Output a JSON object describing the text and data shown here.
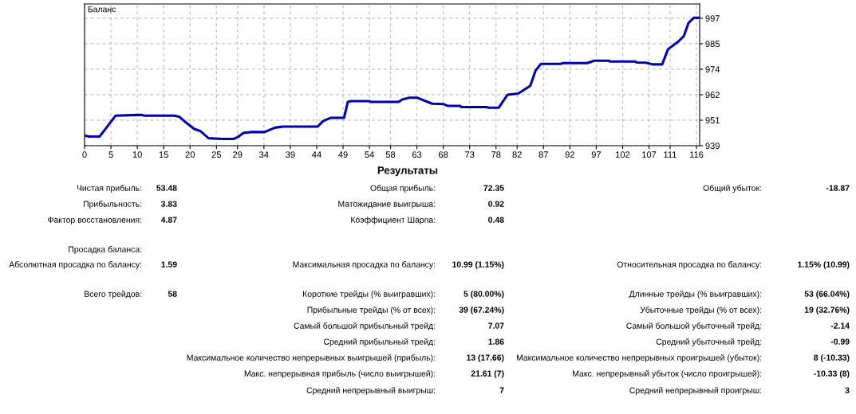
{
  "chart_data": [
    {
      "type": "line",
      "title": "Баланс",
      "x": [
        0,
        0.86,
        2.87,
        5.9,
        8.9,
        10.9,
        11.2,
        17.0,
        18.0,
        19.3,
        20.8,
        22.0,
        23.5,
        26.1,
        28.3,
        29.1,
        30.1,
        31.6,
        34.1,
        36.1,
        37.6,
        44.2,
        45.2,
        46.7,
        49.2,
        49.9,
        50.5,
        54.0,
        54.3,
        59.5,
        60.3,
        61.6,
        63.1,
        65.9,
        68.1,
        68.9,
        71.2,
        71.4,
        76.2,
        76.5,
        78.5,
        80.2,
        82.2,
        84.5,
        85.5,
        86.5,
        90.3,
        90.6,
        95.3,
        96.6,
        99.4,
        99.6,
        104.4,
        104.7,
        106.4,
        107.7,
        109.5,
        110.6,
        112.5,
        113.6,
        114.5,
        115.5,
        116.5
      ],
      "series": [
        {
          "color": "#0000aa",
          "values": [
            943.6,
            943.2,
            943.2,
            952.7,
            952.9,
            953.0,
            952.7,
            952.7,
            952.1,
            949.4,
            946.6,
            945.6,
            942.4,
            942.1,
            942.1,
            943.0,
            944.8,
            945.2,
            945.2,
            947.2,
            947.7,
            947.7,
            950.2,
            951.7,
            951.7,
            958.9,
            959.3,
            959.3,
            958.9,
            958.9,
            960.1,
            960.8,
            960.8,
            958.1,
            957.9,
            957.1,
            957.1,
            956.6,
            956.6,
            956.3,
            956.3,
            962.2,
            962.7,
            966.3,
            973.2,
            976.2,
            976.2,
            976.6,
            976.6,
            977.7,
            977.7,
            977.3,
            977.3,
            976.9,
            976.8,
            976.0,
            976.0,
            982.9,
            986.3,
            988.9,
            994.9,
            997.2,
            997.2
          ]
        }
      ],
      "xlim": [
        0,
        116.6
      ],
      "xticks": [
        0,
        5,
        10,
        15,
        20,
        25,
        29,
        34,
        39,
        44,
        49,
        54,
        58,
        63,
        68,
        73,
        78,
        82,
        87,
        92,
        97,
        102,
        107,
        111,
        116
      ],
      "ylim": [
        939,
        1003.5
      ],
      "yticks": [
        939,
        {
          "value": 950.6,
          "label": "951"
        },
        {
          "value": 962.2,
          "label": "962"
        },
        {
          "value": 973.8,
          "label": "974"
        },
        {
          "value": 985.4,
          "label": "985"
        },
        997
      ],
      "grid": true,
      "line_style": "solid",
      "marker": "none"
    },
    {
      "type": "other",
      "title": "Результаты",
      "annotations": [
        "Чистая прибыль:",
        "53.48",
        "Общая прибыль:",
        "72.35",
        "Общий убыток:",
        "-18.87",
        "Прибыльность:",
        "3.83",
        "Матожидание выигрыша:",
        "0.92",
        "Фактор восстановления:",
        "4.87",
        "Коэффициент Шарпа:",
        "0.48",
        "Просадка баланса:",
        "Абсолютная просадка по балансу:",
        "1.59",
        "Максимальная просадка по балансу:",
        "10.99 (1.15%)",
        "Относительная просадка по балансу:",
        "1.15% (10.99)",
        "Всего трейдов:",
        "58",
        "Короткие трейды (% выигравших):",
        "5 (80.00%)",
        "Длинные трейды (% выигравших):",
        "53 (66.04%)",
        "Прибыльные трейды (% от всех):",
        "39 (67.24%)",
        "Убыточные трейды (% от всех):",
        "19 (32.76%)",
        "Самый большой прибыльный трейд:",
        "7.07",
        "Самый большой убыточный трейд:",
        "-2.14",
        "Средний прибыльный трейд:",
        "1.86",
        "Средний убыточный трейд:",
        "-0.99",
        "Максимальное количество непрерывных выигрышей (прибыль):",
        "13 (17.66)",
        "Максимальное количество непрерывных проигрышей (убыток):",
        "8 (-10.33)",
        "Макс. непрерывная прибыль (число выигрышей):",
        "21.61 (7)",
        "Макс. непрерывный убыток (число проигрышей):",
        "-10.33 (8)",
        "Средний непрерывный выигрыш:",
        "7",
        "Средний непрерывный проигрыш:",
        "3"
      ]
    }
  ]
}
